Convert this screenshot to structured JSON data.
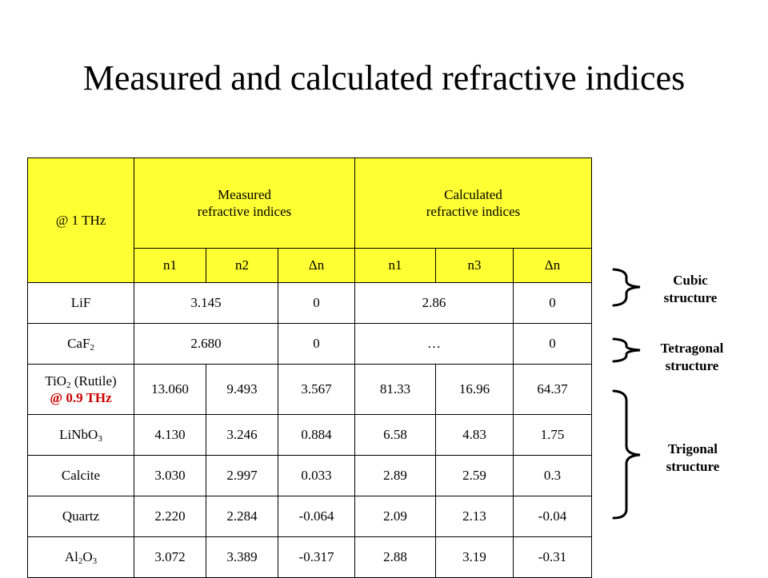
{
  "title": "Measured and calculated refractive indices",
  "table": {
    "corner": "@ 1 THz",
    "measured_line1": "Measured",
    "measured_line2": "refractive indices",
    "calculated_line1": "Calculated",
    "calculated_line2": "refractive indices",
    "subheaders": [
      "n1",
      "n2",
      "Δn",
      "n1",
      "n3",
      "Δn"
    ],
    "rows": [
      {
        "name": "LiF",
        "measured": "3.145",
        "mdelta": "0",
        "calc": "2.86",
        "cdelta": "0"
      },
      {
        "name_base": "CaF",
        "name_sub": "2",
        "measured": "2.680",
        "mdelta": "0",
        "calc": "…",
        "cdelta": "0"
      },
      {
        "name_base": "TiO",
        "name_sub": "2",
        "name_rest": " (Rutile)",
        "name_note": "@ 0.9 THz",
        "values": [
          "13.060",
          "9.493",
          "3.567",
          "81.33",
          "16.96",
          "64.37"
        ]
      },
      {
        "name_base": "LiNbO",
        "name_sub": "3",
        "values": [
          "4.130",
          "3.246",
          "0.884",
          "6.58",
          "4.83",
          "1.75"
        ]
      },
      {
        "name": "Calcite",
        "values": [
          "3.030",
          "2.997",
          "0.033",
          "2.89",
          "2.59",
          "0.3"
        ]
      },
      {
        "name": "Quartz",
        "values": [
          "2.220",
          "2.284",
          "-0.064",
          "2.09",
          "2.13",
          "-0.04"
        ]
      },
      {
        "name_base1": "Al",
        "name_sub1": "2",
        "name_base2": "O",
        "name_sub2": "3",
        "values": [
          "3.072",
          "3.389",
          "-0.317",
          "2.88",
          "3.19",
          "-0.31"
        ]
      }
    ]
  },
  "groups": {
    "cubic": {
      "line1": "Cubic",
      "line2": "structure"
    },
    "tetragonal": {
      "line1": "Tetragonal",
      "line2": "structure"
    },
    "trigonal": {
      "line1": "Trigonal",
      "line2": "structure"
    }
  },
  "colors": {
    "header_bg": "#ffff33",
    "note_red": "#cc0000"
  }
}
